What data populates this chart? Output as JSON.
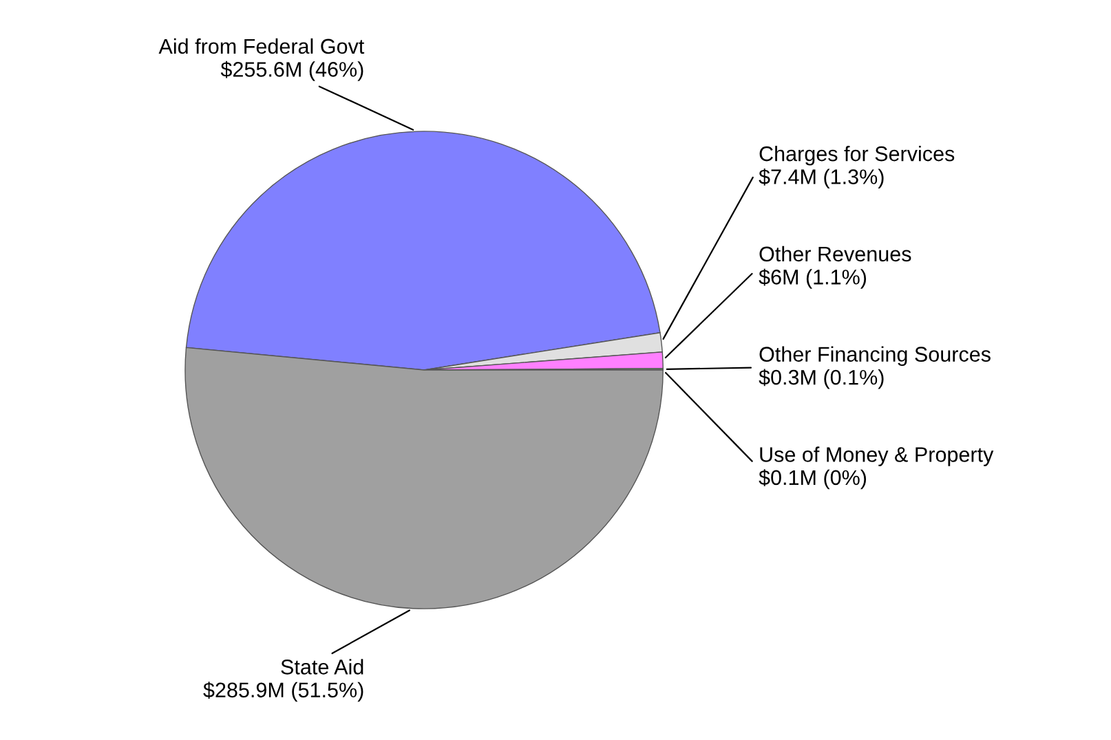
{
  "chart_data": {
    "type": "pie",
    "categories": [
      "Aid from Federal Govt",
      "Charges for Services",
      "Other Revenues",
      "Other Financing Sources",
      "Use of Money & Property",
      "State Aid"
    ],
    "values": [
      46,
      1.3,
      1.1,
      0.1,
      0,
      51.5
    ],
    "value_labels": [
      "$255.6M (46%)",
      "$7.4M (1.3%)",
      "$6M (1.1%)",
      "$0.3M (0.1%)",
      "$0.1M (0%)",
      "$285.9M (51.5%)"
    ],
    "colors": [
      "#8080ff",
      "#e0e0e0",
      "#ff80ff",
      "#80ff80",
      "#ffff80",
      "#a0a0a0"
    ]
  }
}
